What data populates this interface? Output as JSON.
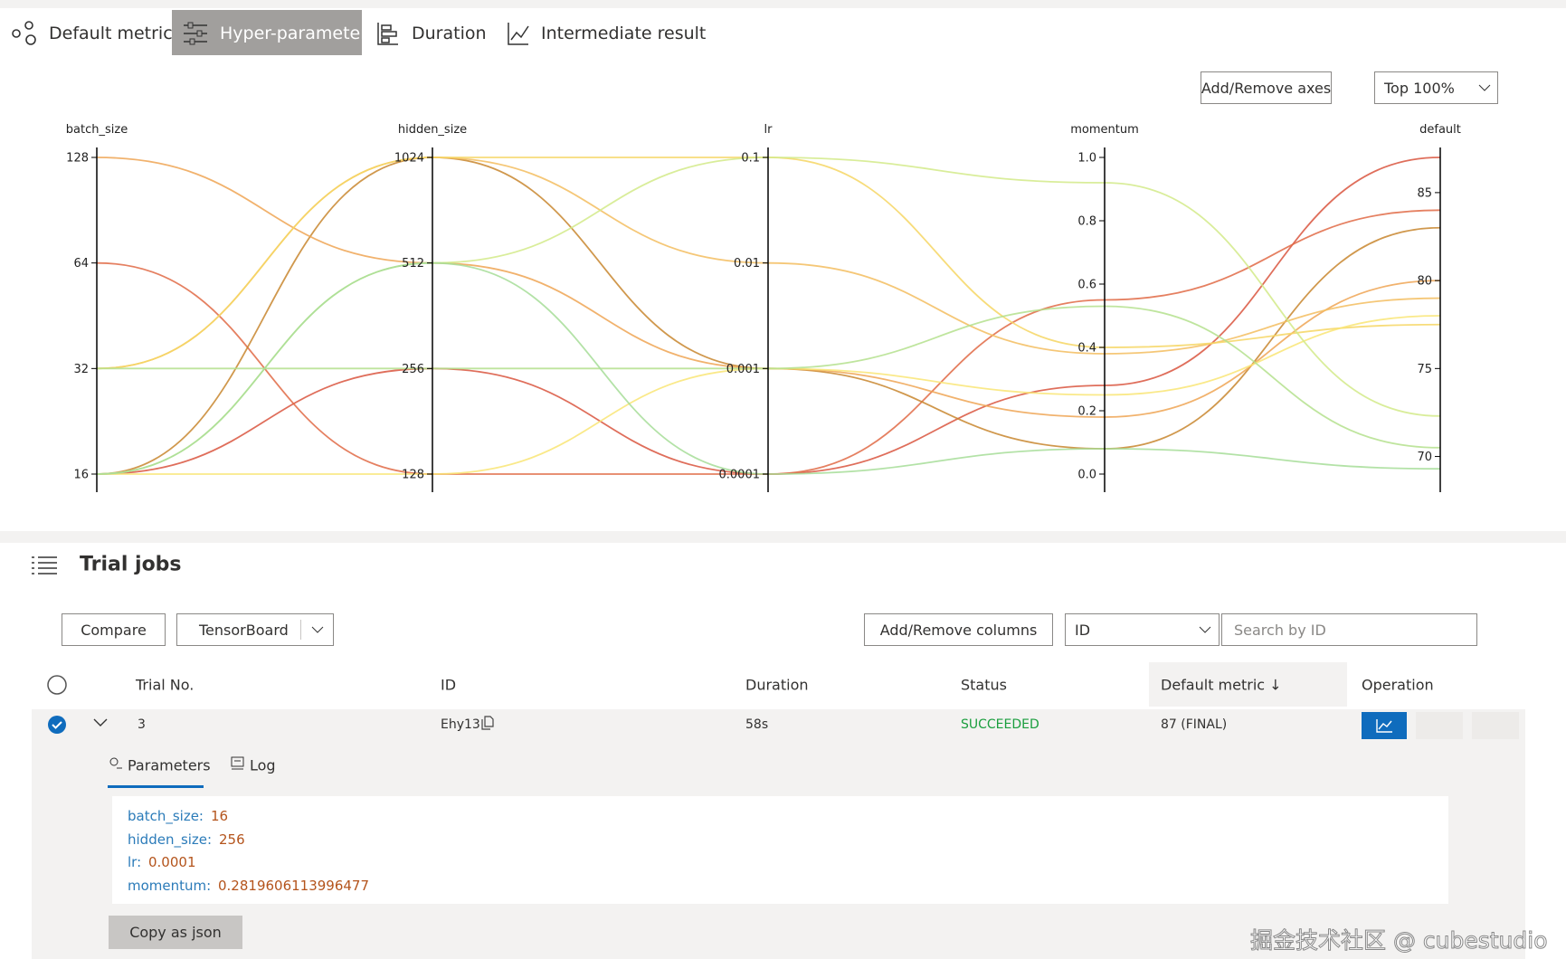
{
  "tabs": [
    "Default metric",
    "Hyper-parameter",
    "Duration",
    "Intermediate result"
  ],
  "chart_buttons": {
    "axes": "Add/Remove axes",
    "top": "Top 100%"
  },
  "chart_data": {
    "type": "parallel",
    "axes": [
      {
        "name": "batch_size",
        "scale": "log",
        "lim": [
          16,
          128
        ],
        "ticks": [
          16,
          32,
          64,
          128
        ]
      },
      {
        "name": "hidden_size",
        "scale": "log",
        "lim": [
          128,
          1024
        ],
        "ticks": [
          128,
          256,
          512,
          1024
        ]
      },
      {
        "name": "lr",
        "scale": "log",
        "lim": [
          0.0001,
          0.1
        ],
        "ticks": [
          0.0001,
          0.001,
          0.01,
          0.1
        ]
      },
      {
        "name": "momentum",
        "scale": "linear",
        "lim": [
          0,
          1
        ],
        "ticks": [
          {
            "value": 0,
            "label": "0.0"
          },
          0.2,
          0.4,
          0.6,
          0.8,
          {
            "value": 1,
            "label": "1.0"
          }
        ]
      },
      {
        "name": "default",
        "scale": "linear",
        "lim": [
          69,
          87
        ],
        "ticks": [
          70,
          75,
          80,
          85
        ]
      }
    ],
    "series": [
      {
        "color": "#d9553e",
        "values": [
          16,
          256,
          0.0001,
          0.28,
          87
        ]
      },
      {
        "color": "#e06a45",
        "values": [
          64,
          128,
          0.0001,
          0.55,
          84
        ]
      },
      {
        "color": "#c8862e",
        "values": [
          16,
          1024,
          0.001,
          0.08,
          83
        ]
      },
      {
        "color": "#eea553",
        "values": [
          128,
          512,
          0.001,
          0.18,
          80
        ]
      },
      {
        "color": "#f3bd5f",
        "values": [
          32,
          1024,
          0.01,
          0.38,
          79
        ]
      },
      {
        "color": "#f6d663",
        "values": [
          32,
          1024,
          0.1,
          0.4,
          77.5
        ]
      },
      {
        "color": "#f9e574",
        "values": [
          16,
          128,
          0.001,
          0.25,
          78
        ]
      },
      {
        "color": "#d2ea88",
        "values": [
          16,
          512,
          0.1,
          0.92,
          72.3
        ]
      },
      {
        "color": "#b4e18d",
        "values": [
          32,
          256,
          0.001,
          0.53,
          70.5
        ]
      },
      {
        "color": "#a6dd98",
        "values": [
          16,
          512,
          0.0001,
          0.08,
          69.3
        ]
      }
    ]
  },
  "trial_jobs": {
    "title": "Trial jobs",
    "buttons": [
      "Compare",
      "TensorBoard",
      "Add/Remove columns"
    ],
    "search_field": "ID",
    "search_placeholder": "Search by ID",
    "columns": [
      "Trial No.",
      "ID",
      "Duration",
      "Status",
      "Default metric ↓",
      "Operation"
    ],
    "rows": [
      [
        "3",
        "Ehy13",
        "58s",
        "SUCCEEDED",
        "87 (FINAL)"
      ]
    ],
    "detail_tabs": [
      "Parameters",
      "Log"
    ],
    "parameters": [
      {
        "key": "batch_size:",
        "value": "16"
      },
      {
        "key": "hidden_size:",
        "value": "256"
      },
      {
        "key": "lr:",
        "value": "0.0001"
      },
      {
        "key": "momentum:",
        "value": "0.2819606113996477"
      }
    ],
    "copy_button": "Copy as json"
  },
  "watermark": "掘金技术社区 @ cubestudio"
}
